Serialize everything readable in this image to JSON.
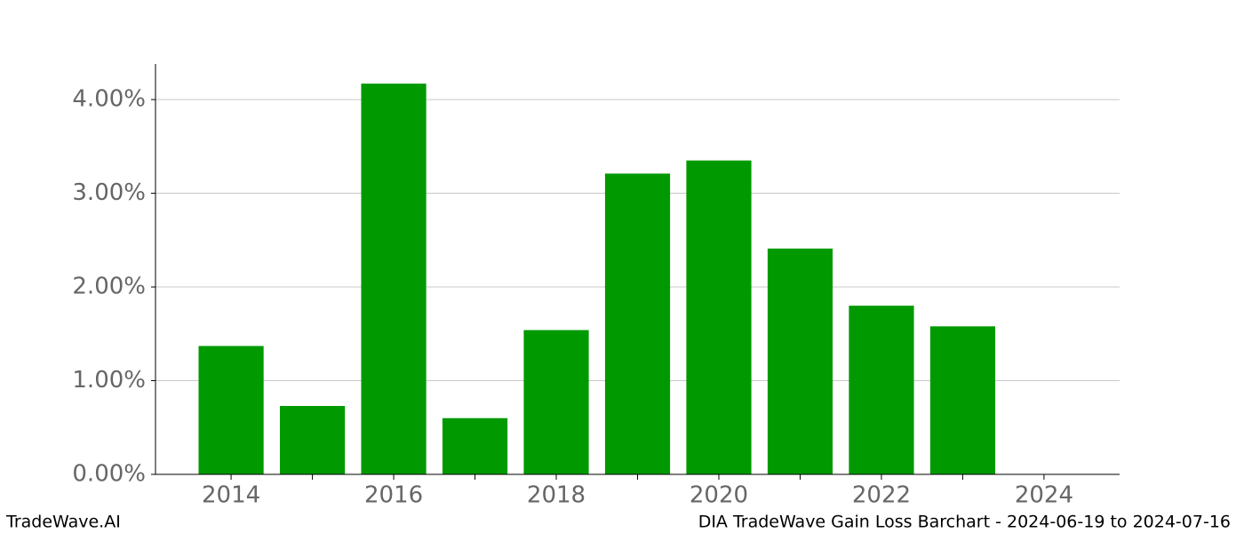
{
  "chart_data": {
    "type": "bar",
    "x": [
      2014,
      2015,
      2016,
      2017,
      2018,
      2019,
      2020,
      2021,
      2022,
      2023
    ],
    "values": [
      1.37,
      0.73,
      4.17,
      0.6,
      1.54,
      3.21,
      3.35,
      2.41,
      1.8,
      1.58
    ],
    "color": "#009900",
    "xlim": [
      2013.07,
      2024.93
    ],
    "xticks": [
      2014,
      2016,
      2018,
      2020,
      2022,
      2024
    ],
    "xminorticks": [
      2015,
      2017,
      2019,
      2021,
      2023
    ],
    "ylim": [
      0,
      4.38
    ],
    "yticks": [
      {
        "value": 0,
        "label": "0.00%"
      },
      {
        "value": 1,
        "label": "1.00%"
      },
      {
        "value": 2,
        "label": "2.00%"
      },
      {
        "value": 3,
        "label": "3.00%"
      },
      {
        "value": 4,
        "label": "4.00%"
      }
    ],
    "grid": true,
    "source": "TradeWave.AI",
    "title": "DIA TradeWave Gain Loss Barchart - 2024-06-19 to 2024-07-16"
  }
}
